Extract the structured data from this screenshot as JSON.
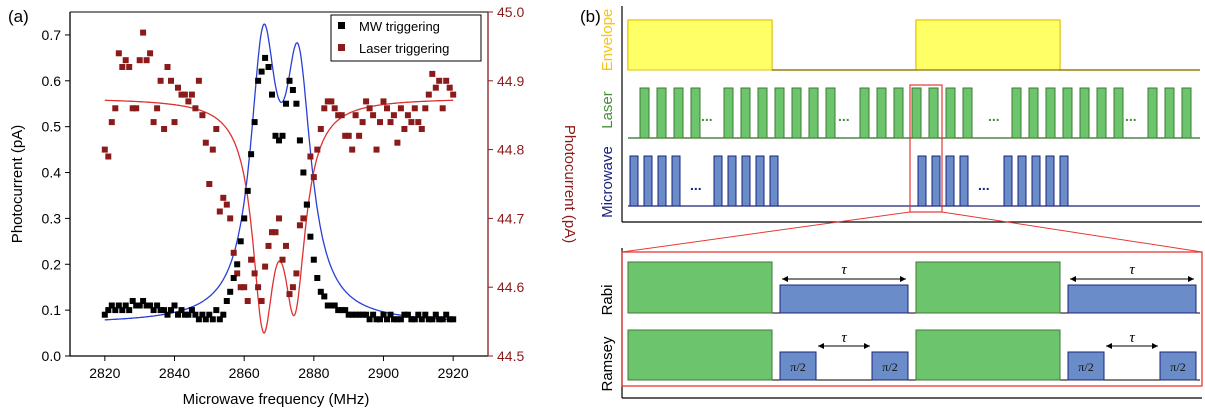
{
  "panel_a": {
    "label": "(a)",
    "xlabel": "Microwave frequency (MHz)",
    "ylabel_left": "Photocurrent (pA)",
    "ylabel_right": "Photocurrent (pA)",
    "x_ticks": [
      "2820",
      "2840",
      "2860",
      "2880",
      "2900",
      "2920"
    ],
    "y_left_ticks": [
      "0.0",
      "0.1",
      "0.2",
      "0.3",
      "0.4",
      "0.5",
      "0.6",
      "0.7"
    ],
    "y_right_ticks": [
      "44.5",
      "44.6",
      "44.7",
      "44.8",
      "44.9",
      "45.0"
    ],
    "legend": [
      "MW triggering",
      "Laser triggering"
    ],
    "colors": {
      "mw": "#000000",
      "laser": "#8b1a1a",
      "mw_fit": "#2a3fd6",
      "laser_fit": "#e03030",
      "right_axis": "#8b1a1a"
    }
  },
  "chart_data": {
    "type": "scatter",
    "xlabel": "Microwave frequency (MHz)",
    "xlim": [
      2810,
      2930
    ],
    "series": [
      {
        "name": "MW triggering",
        "axis": "left",
        "ylabel": "Photocurrent (pA)",
        "ylim": [
          0.0,
          0.75
        ],
        "x": [
          2820,
          2821,
          2822,
          2823,
          2824,
          2825,
          2826,
          2827,
          2828,
          2829,
          2830,
          2831,
          2832,
          2833,
          2834,
          2835,
          2836,
          2837,
          2838,
          2839,
          2840,
          2841,
          2842,
          2843,
          2844,
          2845,
          2846,
          2847,
          2848,
          2849,
          2850,
          2851,
          2852,
          2853,
          2854,
          2855,
          2856,
          2857,
          2858,
          2859,
          2860,
          2861,
          2862,
          2863,
          2864,
          2865,
          2866,
          2867,
          2868,
          2869,
          2870,
          2871,
          2872,
          2873,
          2874,
          2875,
          2876,
          2877,
          2878,
          2879,
          2880,
          2881,
          2882,
          2883,
          2884,
          2885,
          2886,
          2887,
          2888,
          2889,
          2890,
          2891,
          2892,
          2893,
          2894,
          2895,
          2896,
          2897,
          2898,
          2899,
          2900,
          2901,
          2902,
          2903,
          2904,
          2905,
          2906,
          2907,
          2908,
          2909,
          2910,
          2911,
          2912,
          2913,
          2914,
          2915,
          2916,
          2917,
          2918,
          2919,
          2920
        ],
        "y": [
          0.09,
          0.1,
          0.11,
          0.1,
          0.11,
          0.1,
          0.11,
          0.1,
          0.12,
          0.11,
          0.11,
          0.12,
          0.11,
          0.11,
          0.1,
          0.11,
          0.1,
          0.1,
          0.09,
          0.1,
          0.11,
          0.09,
          0.1,
          0.09,
          0.09,
          0.1,
          0.09,
          0.08,
          0.09,
          0.08,
          0.09,
          0.08,
          0.1,
          0.08,
          0.09,
          0.12,
          0.14,
          0.17,
          0.2,
          0.25,
          0.3,
          0.36,
          0.44,
          0.51,
          0.6,
          0.62,
          0.65,
          0.63,
          0.57,
          0.48,
          0.47,
          0.48,
          0.55,
          0.6,
          0.58,
          0.55,
          0.47,
          0.4,
          0.33,
          0.26,
          0.21,
          0.17,
          0.14,
          0.13,
          0.11,
          0.11,
          0.11,
          0.1,
          0.1,
          0.1,
          0.09,
          0.09,
          0.09,
          0.09,
          0.09,
          0.09,
          0.08,
          0.09,
          0.08,
          0.08,
          0.09,
          0.08,
          0.09,
          0.08,
          0.08,
          0.08,
          0.09,
          0.09,
          0.08,
          0.08,
          0.09,
          0.08,
          0.09,
          0.08,
          0.08,
          0.09,
          0.08,
          0.08,
          0.09,
          0.08,
          0.08
        ]
      },
      {
        "name": "Laser triggering",
        "axis": "right",
        "ylabel": "Photocurrent (pA)",
        "ylim": [
          44.5,
          45.0
        ],
        "x": [
          2820,
          2821,
          2822,
          2823,
          2824,
          2825,
          2826,
          2827,
          2828,
          2829,
          2830,
          2831,
          2832,
          2833,
          2834,
          2835,
          2836,
          2837,
          2838,
          2839,
          2840,
          2841,
          2842,
          2843,
          2844,
          2845,
          2846,
          2847,
          2848,
          2849,
          2850,
          2851,
          2852,
          2853,
          2854,
          2855,
          2856,
          2857,
          2858,
          2859,
          2860,
          2861,
          2862,
          2863,
          2864,
          2865,
          2866,
          2867,
          2868,
          2869,
          2870,
          2871,
          2872,
          2873,
          2874,
          2875,
          2876,
          2877,
          2878,
          2879,
          2880,
          2881,
          2882,
          2883,
          2884,
          2885,
          2886,
          2887,
          2888,
          2889,
          2890,
          2891,
          2892,
          2893,
          2894,
          2895,
          2896,
          2897,
          2898,
          2899,
          2900,
          2901,
          2902,
          2903,
          2904,
          2905,
          2906,
          2907,
          2908,
          2909,
          2910,
          2911,
          2912,
          2913,
          2914,
          2915,
          2916,
          2917,
          2918,
          2919,
          2920
        ],
        "y": [
          44.8,
          44.79,
          44.84,
          44.86,
          44.94,
          44.92,
          44.93,
          44.92,
          44.86,
          44.86,
          44.93,
          44.97,
          44.93,
          44.94,
          44.84,
          44.86,
          44.9,
          44.83,
          44.92,
          44.9,
          44.84,
          44.89,
          44.88,
          44.88,
          44.87,
          44.88,
          44.86,
          44.9,
          44.85,
          44.81,
          44.75,
          44.8,
          44.83,
          44.71,
          44.73,
          44.72,
          44.7,
          44.65,
          44.62,
          44.6,
          44.6,
          44.58,
          44.64,
          44.62,
          44.6,
          44.58,
          44.63,
          44.66,
          44.68,
          44.68,
          44.7,
          44.64,
          44.66,
          44.59,
          44.6,
          44.62,
          44.69,
          44.7,
          44.72,
          44.79,
          44.76,
          44.8,
          44.83,
          44.86,
          44.87,
          44.87,
          44.86,
          44.85,
          44.85,
          44.82,
          44.82,
          44.8,
          44.85,
          44.82,
          44.84,
          44.87,
          44.86,
          44.85,
          44.8,
          44.84,
          44.87,
          44.86,
          44.84,
          44.85,
          44.81,
          44.86,
          44.83,
          44.85,
          44.84,
          44.86,
          44.84,
          44.83,
          44.86,
          44.88,
          44.91,
          44.89,
          44.9,
          44.86,
          44.9,
          44.89,
          44.88
        ]
      }
    ],
    "fits": [
      {
        "name": "MW fit",
        "axis": "left",
        "baseline": 0.07,
        "peaks": [
          [
            2865.5,
            0.565,
            4.5
          ],
          [
            2875.5,
            0.515,
            4.5
          ]
        ]
      },
      {
        "name": "Laser fit",
        "axis": "right",
        "baseline": 44.875,
        "dips": [
          [
            2865.5,
            0.3,
            3.8
          ],
          [
            2874.5,
            0.27,
            3.8
          ]
        ]
      }
    ]
  },
  "panel_b": {
    "label": "(b)",
    "row_labels": [
      "Envelope",
      "Laser",
      "Microwave"
    ],
    "detail_labels": [
      "Rabi",
      "Ramsey"
    ],
    "ellipsis": "...",
    "tau": "τ",
    "pi_half": "π/2",
    "colors": {
      "envelope": "#f5c518",
      "envelope_fill": "#ffff66",
      "laser": "#4a8f3c",
      "laser_fill": "#6cc46c",
      "microwave": "#1a237e",
      "microwave_fill": "#6a8cc8",
      "zoom": "#e53935"
    }
  }
}
